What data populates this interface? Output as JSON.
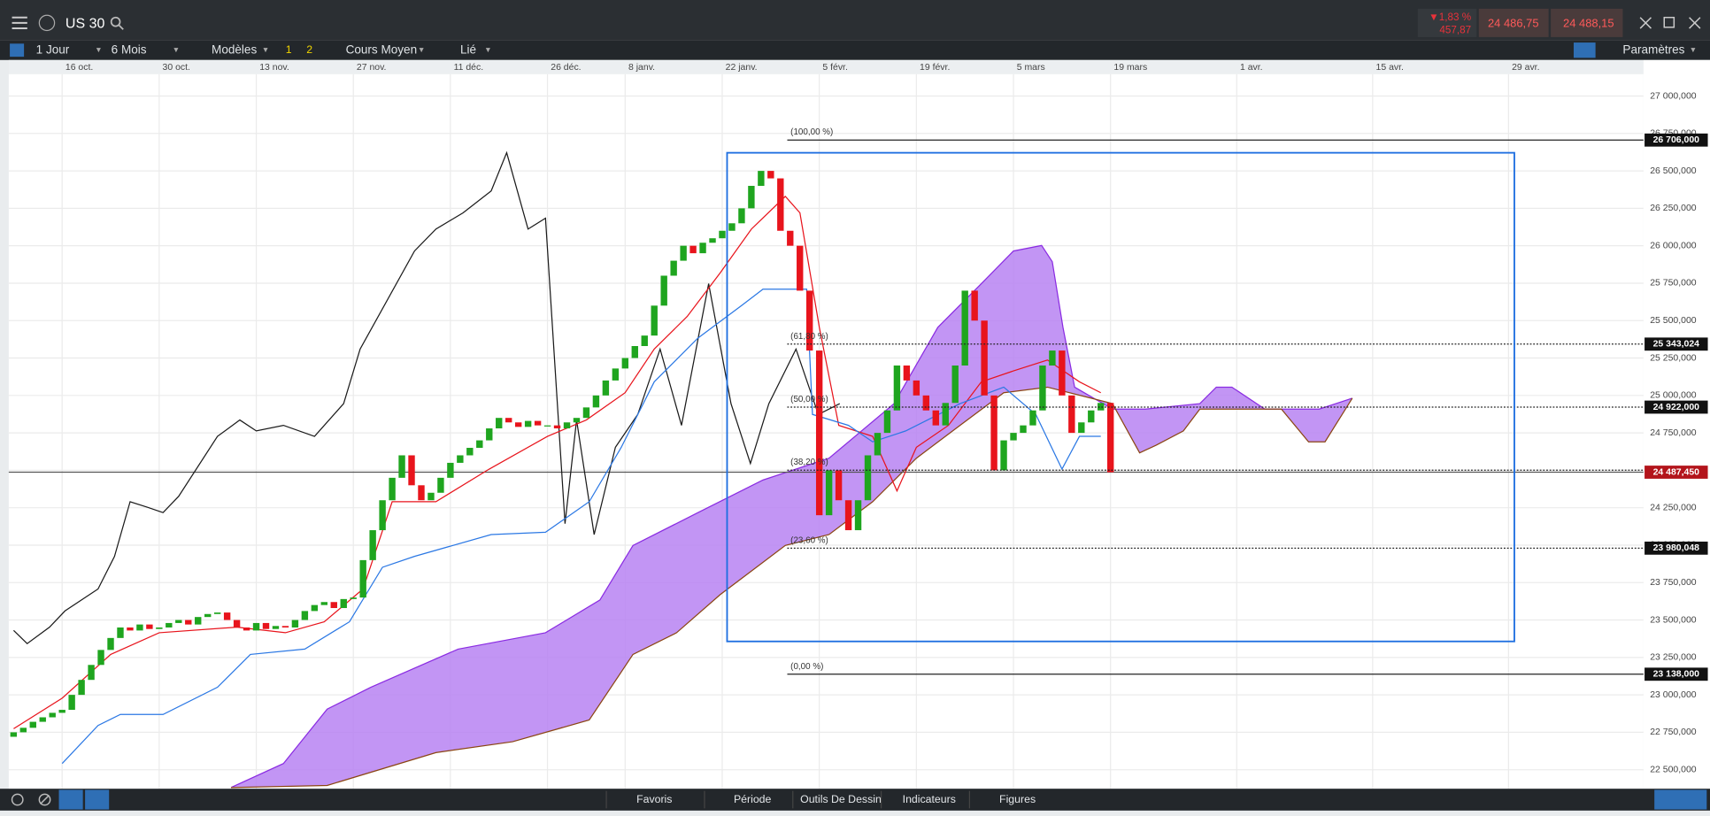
{
  "top_bar": {
    "symbol": "US 30",
    "change_pct": "▼1,83 %",
    "change_abs": "457,87",
    "sell": "24 486,75",
    "buy": "24 488,15"
  },
  "toolbar": {
    "interval": "1 Jour",
    "range": "6 Mois",
    "templates": "Modèles",
    "style_1": "1",
    "style_2": "2",
    "chart_type": "Cours Moyen",
    "link": "Lié",
    "settings": "Paramètres"
  },
  "bottom_bar": {
    "tabs": [
      "Favoris",
      "Période",
      "Outils De Dessin",
      "Indicateurs",
      "Figures"
    ]
  },
  "chart_data": {
    "type": "candlestick",
    "xlim": [
      -5.5,
      162.9
    ],
    "xticks": [
      {
        "value": 0,
        "label": "16 oct."
      },
      {
        "value": 10,
        "label": "30 oct."
      },
      {
        "value": 20,
        "label": "13 nov."
      },
      {
        "value": 30,
        "label": "27 nov."
      },
      {
        "value": 40,
        "label": "11 déc."
      },
      {
        "value": 50,
        "label": "26 déc."
      },
      {
        "value": 58,
        "label": "8 janv."
      },
      {
        "value": 68,
        "label": "22 janv."
      },
      {
        "value": 78,
        "label": "5 févr."
      },
      {
        "value": 88,
        "label": "19 févr."
      },
      {
        "value": 98,
        "label": "5 mars"
      },
      {
        "value": 108,
        "label": "19 mars"
      },
      {
        "value": 121,
        "label": "1 avr."
      },
      {
        "value": 135,
        "label": "15 avr."
      },
      {
        "value": 149,
        "label": "29 avr."
      }
    ],
    "ylim": [
      22373,
      27146
    ],
    "yticks": [
      {
        "value": 22500,
        "label": "22 500,000"
      },
      {
        "value": 22750,
        "label": "22 750,000"
      },
      {
        "value": 23000,
        "label": "23 000,000"
      },
      {
        "value": 23250,
        "label": "23 250,000"
      },
      {
        "value": 23500,
        "label": "23 500,000"
      },
      {
        "value": 23750,
        "label": "23 750,000"
      },
      {
        "value": 24000,
        "label": "24 000,000"
      },
      {
        "value": 24250,
        "label": "24 250,000"
      },
      {
        "value": 24500,
        "label": "24 500,000"
      },
      {
        "value": 24750,
        "label": "24 750,000"
      },
      {
        "value": 25000,
        "label": "25 000,000"
      },
      {
        "value": 25250,
        "label": "25 250,000"
      },
      {
        "value": 25500,
        "label": "25 500,000"
      },
      {
        "value": 25750,
        "label": "25 750,000"
      },
      {
        "value": 26000,
        "label": "26 000,000"
      },
      {
        "value": 26250,
        "label": "26 250,000"
      },
      {
        "value": 26500,
        "label": "26 500,000"
      },
      {
        "value": 26750,
        "label": "26 750,000"
      },
      {
        "value": 27000,
        "label": "27 000,000"
      }
    ],
    "grid": true,
    "candles": {
      "up_color": "#1fa51f",
      "down_color": "#e8141c",
      "x": [
        -5,
        -4,
        -3,
        -2,
        -1,
        0,
        1,
        2,
        3,
        4,
        5,
        6,
        7,
        8,
        9,
        10,
        11,
        12,
        13,
        14,
        15,
        16,
        17,
        18,
        19,
        20,
        21,
        22,
        23,
        24,
        25,
        26,
        27,
        28,
        29,
        30,
        31,
        32,
        33,
        34,
        35,
        36,
        37,
        38,
        39,
        40,
        41,
        42,
        43,
        44,
        45,
        46,
        47,
        48,
        49,
        50,
        51,
        52,
        53,
        54,
        55,
        56,
        57,
        58,
        59,
        60,
        61,
        62,
        63,
        64,
        65,
        66,
        67,
        68,
        69,
        70,
        71,
        72,
        73,
        74,
        75,
        76,
        77,
        78,
        79,
        80,
        81,
        82,
        83,
        84,
        85,
        86,
        87,
        88,
        89,
        90,
        91,
        92,
        93,
        94,
        95,
        96,
        97,
        98,
        99,
        100,
        101,
        102,
        103,
        104,
        105,
        106,
        107,
        108
      ],
      "open": [
        22720,
        22750,
        22780,
        22820,
        22850,
        22880,
        22900,
        23000,
        23100,
        23200,
        23300,
        23380,
        23450,
        23430,
        23470,
        23440,
        23450,
        23480,
        23500,
        23470,
        23520,
        23540,
        23550,
        23500,
        23450,
        23430,
        23480,
        23440,
        23460,
        23450,
        23500,
        23560,
        23600,
        23620,
        23580,
        23640,
        23650,
        23900,
        24100,
        24300,
        24450,
        24600,
        24400,
        24300,
        24350,
        24450,
        24550,
        24600,
        24650,
        24700,
        24780,
        24850,
        24820,
        24790,
        24830,
        24800,
        24800,
        24780,
        24820,
        24850,
        24920,
        25000,
        25100,
        25180,
        25250,
        25330,
        25400,
        25600,
        25800,
        25900,
        26000,
        25950,
        26020,
        26050,
        26100,
        26150,
        26250,
        26400,
        26500,
        26450,
        26100,
        26000,
        25700,
        25300,
        24200,
        24500,
        24300,
        24100,
        24300,
        24600,
        24750,
        24900,
        25200,
        25100,
        25000,
        24900,
        24800,
        24950,
        25200,
        25700,
        25500,
        25000,
        24500,
        24700,
        24750,
        24800,
        24900,
        25200,
        25300,
        25000,
        24750,
        24820,
        24900,
        24950
      ],
      "close": [
        22750,
        22780,
        22820,
        22850,
        22880,
        22900,
        23000,
        23100,
        23200,
        23300,
        23380,
        23450,
        23430,
        23470,
        23440,
        23450,
        23480,
        23500,
        23470,
        23520,
        23540,
        23550,
        23500,
        23450,
        23430,
        23480,
        23440,
        23460,
        23450,
        23500,
        23560,
        23600,
        23620,
        23580,
        23640,
        23650,
        23900,
        24100,
        24300,
        24450,
        24600,
        24400,
        24300,
        24350,
        24450,
        24550,
        24600,
        24650,
        24700,
        24780,
        24850,
        24820,
        24790,
        24830,
        24800,
        24800,
        24780,
        24820,
        24850,
        24920,
        25000,
        25100,
        25180,
        25250,
        25330,
        25400,
        25600,
        25800,
        25900,
        26000,
        25950,
        26020,
        26050,
        26100,
        26150,
        26250,
        26400,
        26500,
        26450,
        26100,
        26000,
        25700,
        25300,
        24200,
        24500,
        24300,
        24100,
        24300,
        24600,
        24750,
        24900,
        25200,
        25100,
        25000,
        24900,
        24800,
        24950,
        25200,
        25700,
        25500,
        25000,
        24500,
        24700,
        24750,
        24800,
        24900,
        25200,
        25300,
        25000,
        24750,
        24820,
        24900,
        24950,
        24487
      ]
    },
    "overlays": [
      {
        "color": "#1a1a1a",
        "x": [
          -5,
          -3.6,
          -1.3,
          0.3,
          3.7,
          5.4,
          7,
          8.8,
          10.4,
          12,
          16,
          18.3,
          20,
          22.8,
          26,
          29,
          30.7,
          36.3,
          38.5,
          41.3,
          44.2,
          45.8,
          48,
          49.8,
          51.8,
          53,
          54.8,
          57,
          59.3,
          61.6,
          63.8,
          66.6,
          68.9,
          70.9,
          72.8,
          75.6,
          77.9,
          80.1
        ],
        "values": [
          23430,
          23342,
          23452,
          23561,
          23707,
          23925,
          24290,
          24253,
          24217,
          24326,
          24727,
          24836,
          24763,
          24800,
          24727,
          24945,
          25310,
          25965,
          26111,
          26220,
          26366,
          26621,
          26111,
          26184,
          24144,
          24836,
          24071,
          24654,
          24873,
          25310,
          24800,
          25747,
          24945,
          24545,
          24945,
          25310,
          24873,
          24945
        ]
      },
      {
        "color": "#e8141c",
        "x": [
          -5,
          0,
          5,
          10,
          18,
          23,
          27,
          31,
          34,
          38.5,
          44,
          50,
          54,
          58,
          61,
          64.4,
          67.8,
          71,
          74.5,
          76,
          78,
          80,
          83.5,
          86,
          88,
          91.3,
          94.7,
          98,
          101.5,
          104.8,
          107
        ],
        "values": [
          22774,
          22978,
          23270,
          23415,
          23452,
          23415,
          23488,
          23707,
          24290,
          24290,
          24508,
          24727,
          24836,
          25018,
          25310,
          25528,
          25820,
          26111,
          26330,
          26220,
          25455,
          24800,
          24727,
          24362,
          24654,
          24800,
          25091,
          25164,
          25237,
          25091,
          25018
        ]
      },
      {
        "color": "#2b78e4",
        "x": [
          0,
          3.7,
          6,
          10.4,
          16,
          19.4,
          25,
          29.6,
          33,
          36.3,
          44.2,
          49.8,
          54.3,
          57.6,
          61,
          65.5,
          70,
          72.2,
          76.7,
          77.3,
          81,
          83.5,
          86.9,
          92.5,
          97,
          100.3,
          103,
          104.8,
          107
        ],
        "values": [
          22541,
          22796,
          22869,
          22869,
          23051,
          23270,
          23306,
          23488,
          23852,
          23925,
          24071,
          24086,
          24290,
          24654,
          25091,
          25383,
          25601,
          25710,
          25710,
          24873,
          24800,
          24690,
          24763,
          24945,
          25055,
          24873,
          24508,
          24727,
          24727
        ]
      }
    ],
    "cloud": {
      "fill": "#b783f2",
      "upper_color": "#8a2be2",
      "lower_color": "#8b4513",
      "x_upper": [
        17.4,
        22.8,
        27.3,
        31.8,
        40.8,
        49.8,
        55.4,
        58.8,
        65.5,
        72.2,
        79,
        85.7,
        90.2,
        94.7,
        98,
        100.9,
        102,
        103.1,
        104.3,
        108.2,
        111.6,
        117.2,
        118.9,
        120.5,
        123.9,
        129.5,
        132.9
      ],
      "upper": [
        22381,
        22541,
        22905,
        23051,
        23306,
        23415,
        23634,
        23998,
        24217,
        24435,
        24581,
        24945,
        25455,
        25747,
        25965,
        26002,
        25893,
        25455,
        25055,
        24909,
        24909,
        24945,
        25055,
        25055,
        24909,
        24909,
        24982
      ],
      "x_lower": [
        17.4,
        27.3,
        38.5,
        46.4,
        54.3,
        58.8,
        63.3,
        67.8,
        74.5,
        79,
        83.5,
        88,
        92.5,
        97,
        101.5,
        106,
        108.2,
        111,
        112.7,
        115.5,
        117.2,
        122.8,
        125.6,
        128.4,
        130.1,
        132.9
      ],
      "lower": [
        22381,
        22395,
        22614,
        22687,
        22832,
        23270,
        23415,
        23670,
        23998,
        24071,
        24290,
        24581,
        24800,
        25018,
        25055,
        24982,
        24945,
        24617,
        24668,
        24763,
        24909,
        24909,
        24909,
        24690,
        24690,
        24982
      ]
    },
    "fibonacci": {
      "x_start": 74.7,
      "levels": [
        {
          "label": "(100,00 %)",
          "value": 26706,
          "price_label": "26 706,000",
          "line_style": "solid"
        },
        {
          "label": "(61,80 %)",
          "value": 25343.024,
          "price_label": "25 343,024",
          "line_style": "dotted"
        },
        {
          "label": "(50,00 %)",
          "value": 24922,
          "price_label": "24 922,000",
          "line_style": "dotted"
        },
        {
          "label": "(38,20 %)",
          "value": 24501,
          "line_style": "dotted"
        },
        {
          "label": "(23,60 %)",
          "value": 23980.048,
          "price_label": "23 980,048",
          "line_style": "dotted"
        },
        {
          "label": "(0,00 %)",
          "value": 23138,
          "price_label": "23 138,000",
          "line_style": "solid"
        }
      ]
    },
    "current_price": {
      "value": 24487.45,
      "label": "24 487,450",
      "color": "#b3141b"
    },
    "rectangle": {
      "x": [
        68.5,
        149.6
      ],
      "y": [
        23357,
        26621
      ],
      "color": "#1f6fe0"
    }
  }
}
